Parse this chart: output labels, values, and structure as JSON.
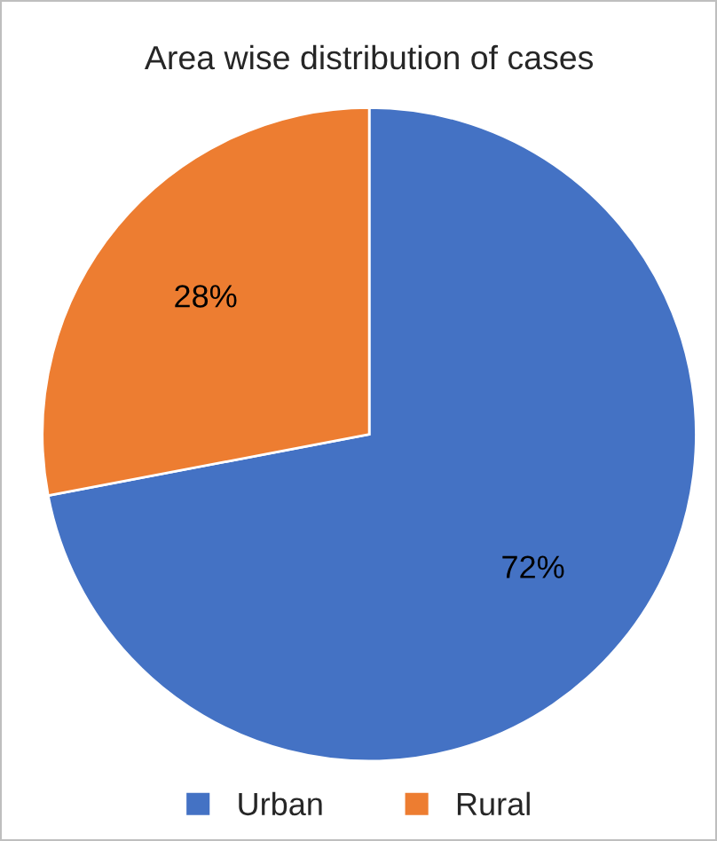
{
  "chart_data": {
    "type": "pie",
    "title": "Area wise distribution of cases",
    "categories": [
      "Urban",
      "Rural"
    ],
    "values": [
      72,
      28
    ],
    "colors": [
      "#4472c4",
      "#ed7d31"
    ],
    "value_labels": [
      "72%",
      "28%"
    ],
    "legend": "bottom"
  }
}
